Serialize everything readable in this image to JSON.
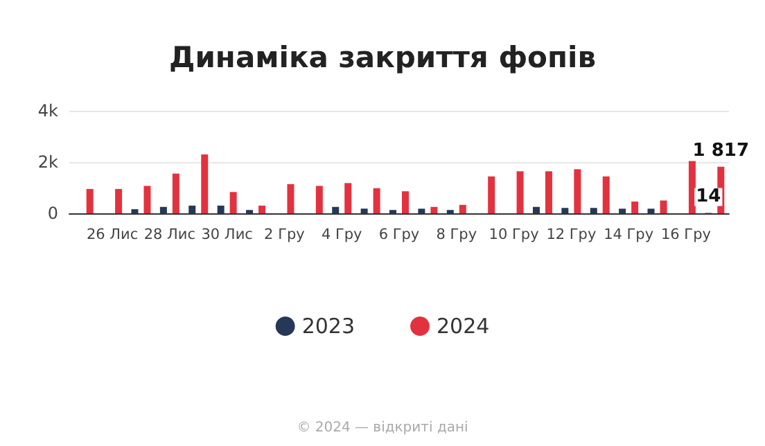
{
  "chart_data": {
    "type": "bar",
    "title": "Динаміка закриття фопів",
    "categories": [
      null,
      "26 Лис",
      null,
      "28 Лис",
      null,
      "30 Лис",
      null,
      "2 Гру",
      null,
      "4 Гру",
      null,
      "6 Гру",
      null,
      "8 Гру",
      null,
      "10 Гру",
      null,
      "12 Гру",
      null,
      "14 Гру",
      null,
      "16 Гру",
      null
    ],
    "series": [
      {
        "name": "2023",
        "color": "#263857",
        "values": [
          null,
          null,
          160,
          250,
          300,
          300,
          130,
          null,
          null,
          250,
          180,
          130,
          180,
          130,
          null,
          null,
          250,
          210,
          210,
          180,
          180,
          null,
          14
        ],
        "value_labels": [
          null,
          null,
          null,
          null,
          null,
          null,
          null,
          null,
          null,
          null,
          null,
          null,
          null,
          null,
          null,
          null,
          null,
          null,
          null,
          null,
          null,
          null,
          "14"
        ]
      },
      {
        "name": "2024",
        "color": "#e3323f",
        "values": [
          950,
          950,
          1070,
          1550,
          2300,
          830,
          300,
          1140,
          1070,
          1180,
          980,
          860,
          250,
          330,
          1440,
          1640,
          1640,
          1720,
          1440,
          460,
          500,
          2040,
          1817
        ],
        "value_labels": [
          null,
          null,
          null,
          null,
          null,
          null,
          null,
          null,
          null,
          null,
          null,
          null,
          null,
          null,
          null,
          null,
          null,
          null,
          null,
          null,
          null,
          null,
          "1 817"
        ]
      }
    ],
    "ylim": [
      0,
      4000
    ],
    "yticks": [
      0,
      {
        "value": 2000,
        "label": "2k"
      },
      {
        "value": 4000,
        "label": "4k"
      }
    ],
    "grid": "y",
    "legend": "bottom",
    "annotations": [
      "© 2024 — відкриті дані"
    ]
  }
}
